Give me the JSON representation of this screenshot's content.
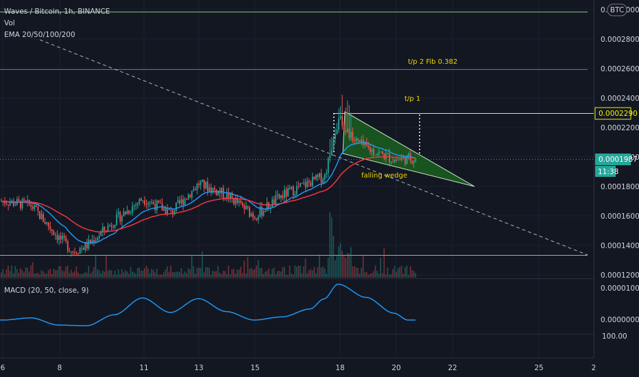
{
  "header": {
    "symbol_line": "Waves / Bitcoin, 1h, BINANCE",
    "vol_label": "Vol",
    "ema_label": "EMA 20/50/100/200",
    "currency_badge": "BTC"
  },
  "price_tags": {
    "target": "0.0002290",
    "current": "0.0001987",
    "countdown": "11:38"
  },
  "annotations": {
    "tp2": "t/p 2 Fib 0.382",
    "tp1": "t/p 1",
    "wedge": "falling wedge"
  },
  "macd": {
    "label": "MACD (20, 50, close, 9)",
    "ticks": [
      "0.0000100",
      "0.0000000",
      "100.00"
    ]
  },
  "colors": {
    "background": "#131722",
    "bull": "#26a69a",
    "bear": "#ef5350",
    "ema_fast": "#2196f3",
    "ema_slow": "#f23645",
    "macd_line": "#2196f3",
    "target_line": "#f2f200",
    "fib_line": "#7e57c2",
    "support_line": "#81c784",
    "wedge_fill": "#1b5e20",
    "current_price": "#26a69a"
  },
  "chart_data": {
    "type": "candlestick",
    "title": "Waves / Bitcoin, 1h, BINANCE",
    "x_ticks": [
      "6",
      "8",
      "11",
      "13",
      "15",
      "18",
      "20",
      "22",
      "25",
      "2"
    ],
    "y_ticks": [
      "0.0003000",
      "0.0002800",
      "0.0002600",
      "0.0002400",
      "0.0002200",
      "0.0002000",
      "0.0001800",
      "0.0001600",
      "0.0001400",
      "0.0001200"
    ],
    "ylim": [
      0.000119,
      0.000302
    ],
    "horizontal_levels": [
      {
        "name": "resistance",
        "value": 0.000295
      },
      {
        "name": "t/p 2 Fib 0.382",
        "value": 0.000259
      },
      {
        "name": "target",
        "value": 0.000229
      },
      {
        "name": "current",
        "value": 0.0001987
      },
      {
        "name": "support",
        "value": 0.000133
      }
    ],
    "series_shape": [
      {
        "date": "6",
        "price": 0.00017
      },
      {
        "date": "7",
        "price": 0.000167
      },
      {
        "date": "8",
        "price": 0.000145
      },
      {
        "date": "8.5",
        "price": 0.000136
      },
      {
        "date": "9",
        "price": 0.00014
      },
      {
        "date": "10",
        "price": 0.000157
      },
      {
        "date": "11",
        "price": 0.000172
      },
      {
        "date": "12",
        "price": 0.000162
      },
      {
        "date": "13",
        "price": 0.000182
      },
      {
        "date": "14",
        "price": 0.000174
      },
      {
        "date": "15",
        "price": 0.00016
      },
      {
        "date": "16",
        "price": 0.000174
      },
      {
        "date": "17",
        "price": 0.000183
      },
      {
        "date": "17.5",
        "price": 0.000187
      },
      {
        "date": "18",
        "price": 0.000226
      },
      {
        "date": "18.5",
        "price": 0.000212
      },
      {
        "date": "19",
        "price": 0.000206
      },
      {
        "date": "20",
        "price": 0.000198
      },
      {
        "date": "20.5",
        "price": 0.000199
      }
    ],
    "macd_shape": [
      {
        "date": "6",
        "value": -2e-07
      },
      {
        "date": "7",
        "value": 5e-07
      },
      {
        "date": "8",
        "value": -1.8e-06
      },
      {
        "date": "9",
        "value": -2e-06
      },
      {
        "date": "10",
        "value": 1.5e-06
      },
      {
        "date": "11",
        "value": 6.8e-06
      },
      {
        "date": "12",
        "value": 2.2e-06
      },
      {
        "date": "13",
        "value": 6.6e-06
      },
      {
        "date": "14",
        "value": 2.5e-06
      },
      {
        "date": "15",
        "value": -2e-07
      },
      {
        "date": "16",
        "value": 8e-07
      },
      {
        "date": "17",
        "value": 3.3e-06
      },
      {
        "date": "17.5",
        "value": 6.5e-06
      },
      {
        "date": "18",
        "value": 1.12e-05
      },
      {
        "date": "19",
        "value": 7e-06
      },
      {
        "date": "20",
        "value": 2e-06
      },
      {
        "date": "20.5",
        "value": -2e-07
      }
    ]
  }
}
